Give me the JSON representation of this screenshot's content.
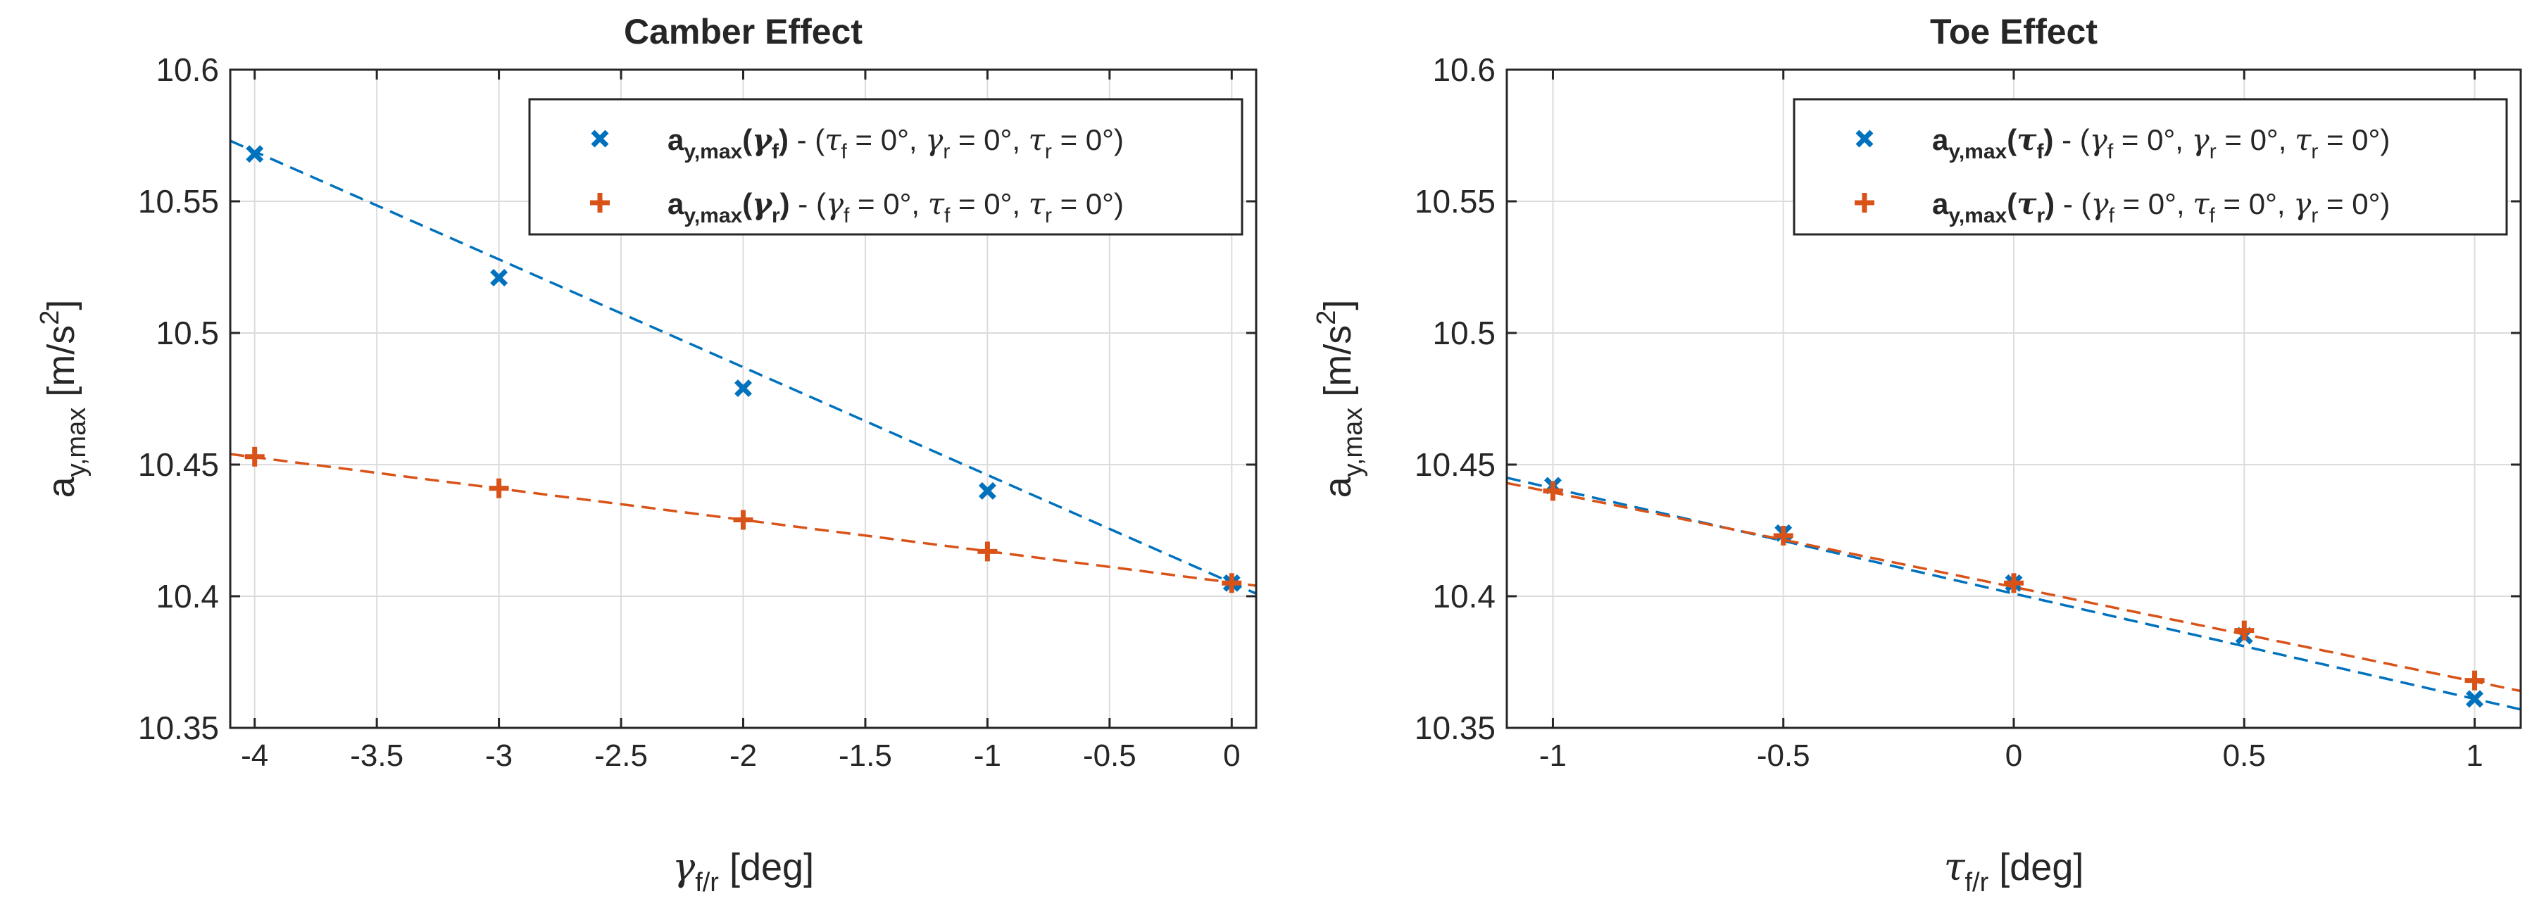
{
  "chart_data": [
    {
      "type": "line",
      "title": "Camber Effect",
      "xlabel": {
        "base": "γ",
        "sub": "f/r",
        "unit": " [deg]"
      },
      "ylabel": {
        "base": "a",
        "sub": "y,max",
        "unit": "  [m/s",
        "sup": "2",
        "close": "]"
      },
      "xlim": [
        -4.1,
        0.1
      ],
      "ylim": [
        10.35,
        10.6
      ],
      "xticks": [
        -4,
        -3.5,
        -3,
        -2.5,
        -2,
        -1.5,
        -1,
        -0.5,
        0
      ],
      "xtick_labels": [
        "-4",
        "-3.5",
        "-3",
        "-2.5",
        "-2",
        "-1.5",
        "-1",
        "-0.5",
        "0"
      ],
      "yticks": [
        10.35,
        10.4,
        10.45,
        10.5,
        10.55,
        10.6
      ],
      "ytick_labels": [
        "10.35",
        "10.4",
        "10.45",
        "10.5",
        "10.55",
        "10.6"
      ],
      "grid": true,
      "legend_position": "top-right",
      "series": [
        {
          "name": "a_y,max(γ_f) - (τ_f = 0°, γ_r = 0°, τ_r = 0°)",
          "legend": {
            "main": "a",
            "mainsub": "y,max",
            "var": "γ",
            "varsub": "f",
            "rest": [
              [
                "τ",
                "f"
              ],
              [
                "γ",
                "r"
              ],
              [
                "τ",
                "r"
              ]
            ]
          },
          "marker": "x",
          "color": "#0072BD",
          "x": [
            -4,
            -3,
            -2,
            -1,
            0
          ],
          "y": [
            10.568,
            10.521,
            10.479,
            10.44,
            10.405
          ],
          "fit": {
            "x": [
              -4.1,
              0.1
            ],
            "y": [
              10.573,
              10.401
            ]
          }
        },
        {
          "name": "a_y,max(γ_r) - (γ_f = 0°, τ_f = 0°, τ_r = 0°)",
          "legend": {
            "main": "a",
            "mainsub": "y,max",
            "var": "γ",
            "varsub": "r",
            "rest": [
              [
                "γ",
                "f"
              ],
              [
                "τ",
                "f"
              ],
              [
                "τ",
                "r"
              ]
            ]
          },
          "marker": "+",
          "color": "#D95319",
          "x": [
            -4,
            -3,
            -2,
            -1,
            0
          ],
          "y": [
            10.453,
            10.441,
            10.429,
            10.417,
            10.405
          ],
          "fit": {
            "x": [
              -4.1,
              0.1
            ],
            "y": [
              10.454,
              10.404
            ]
          }
        }
      ]
    },
    {
      "type": "line",
      "title": "Toe Effect",
      "xlabel": {
        "base": "τ",
        "sub": "f/r",
        "unit": " [deg]"
      },
      "ylabel": {
        "base": "a",
        "sub": "y,max",
        "unit": "  [m/s",
        "sup": "2",
        "close": "]"
      },
      "xlim": [
        -1.1,
        1.1
      ],
      "ylim": [
        10.35,
        10.6
      ],
      "xticks": [
        -1,
        -0.5,
        0,
        0.5,
        1
      ],
      "xtick_labels": [
        "-1",
        "-0.5",
        "0",
        "0.5",
        "1"
      ],
      "yticks": [
        10.35,
        10.4,
        10.45,
        10.5,
        10.55,
        10.6
      ],
      "ytick_labels": [
        "10.35",
        "10.4",
        "10.45",
        "10.5",
        "10.55",
        "10.6"
      ],
      "grid": true,
      "legend_position": "top-right",
      "series": [
        {
          "name": "a_y,max(τ_f) - (γ_f = 0°, γ_r = 0°, τ_r = 0°)",
          "legend": {
            "main": "a",
            "mainsub": "y,max",
            "var": "τ",
            "varsub": "f",
            "rest": [
              [
                "γ",
                "f"
              ],
              [
                "γ",
                "r"
              ],
              [
                "τ",
                "r"
              ]
            ]
          },
          "marker": "x",
          "color": "#0072BD",
          "x": [
            -1,
            -0.5,
            0,
            0.5,
            1
          ],
          "y": [
            10.442,
            10.424,
            10.405,
            10.385,
            10.361
          ],
          "fit": {
            "x": [
              -1.1,
              1.1
            ],
            "y": [
              10.445,
              10.357
            ]
          }
        },
        {
          "name": "a_y,max(τ_r) - (γ_f = 0°, τ_f = 0°, γ_r = 0°)",
          "legend": {
            "main": "a",
            "mainsub": "y,max",
            "var": "τ",
            "varsub": "r",
            "rest": [
              [
                "γ",
                "f"
              ],
              [
                "τ",
                "f"
              ],
              [
                "γ",
                "r"
              ]
            ]
          },
          "marker": "+",
          "color": "#D95319",
          "x": [
            -1,
            -0.5,
            0,
            0.5,
            1
          ],
          "y": [
            10.44,
            10.423,
            10.405,
            10.387,
            10.368
          ],
          "fit": {
            "x": [
              -1.1,
              1.1
            ],
            "y": [
              10.443,
              10.364
            ]
          }
        }
      ]
    }
  ]
}
